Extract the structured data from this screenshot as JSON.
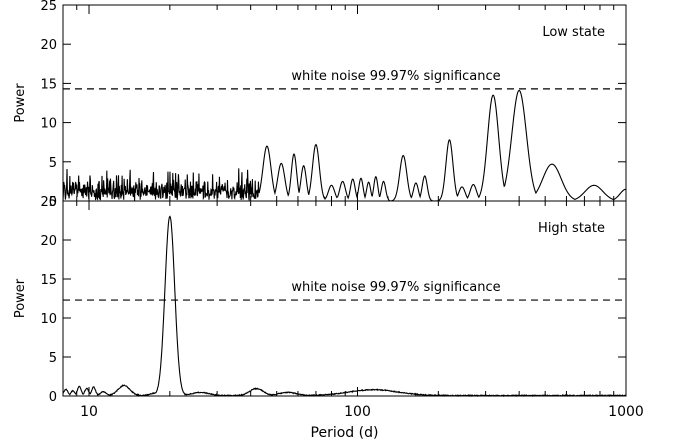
{
  "chart_data": [
    {
      "type": "line",
      "panel": "top",
      "title": "",
      "annotation": "Low state",
      "threshold_label": "white noise 99.97% significance",
      "threshold": 14.3,
      "xlabel": "",
      "ylabel": "Power",
      "xscale": "log",
      "xlim": [
        8,
        1000
      ],
      "ylim": [
        0,
        25
      ],
      "yticks": [
        0,
        5,
        10,
        15,
        20,
        25
      ],
      "ytick_labels": [
        "0",
        "5",
        "10",
        "15",
        "20",
        "25"
      ],
      "peaks": [
        {
          "x": 46,
          "y": 7.0
        },
        {
          "x": 52,
          "y": 4.8
        },
        {
          "x": 58,
          "y": 6.0
        },
        {
          "x": 63,
          "y": 4.5
        },
        {
          "x": 70,
          "y": 7.2
        },
        {
          "x": 80,
          "y": 2.0
        },
        {
          "x": 88,
          "y": 2.5
        },
        {
          "x": 96,
          "y": 2.8
        },
        {
          "x": 103,
          "y": 2.9
        },
        {
          "x": 110,
          "y": 2.4
        },
        {
          "x": 117,
          "y": 3.1
        },
        {
          "x": 125,
          "y": 2.5
        },
        {
          "x": 148,
          "y": 5.8
        },
        {
          "x": 165,
          "y": 2.3
        },
        {
          "x": 178,
          "y": 3.2
        },
        {
          "x": 220,
          "y": 7.8
        },
        {
          "x": 245,
          "y": 1.8
        },
        {
          "x": 270,
          "y": 2.1
        },
        {
          "x": 320,
          "y": 13.5
        },
        {
          "x": 400,
          "y": 14.1
        },
        {
          "x": 530,
          "y": 4.7
        },
        {
          "x": 760,
          "y": 2.0
        },
        {
          "x": 1000,
          "y": 1.5
        }
      ]
    },
    {
      "type": "line",
      "panel": "bottom",
      "title": "",
      "annotation": "High state",
      "threshold_label": "white noise 99.97% significance",
      "threshold": 12.3,
      "xlabel": "Period (d)",
      "ylabel": "Power",
      "xscale": "log",
      "xlim": [
        8,
        1000
      ],
      "ylim": [
        0,
        25
      ],
      "yticks": [
        0,
        5,
        10,
        15,
        20,
        25
      ],
      "ytick_labels": [
        "0",
        "5",
        "10",
        "15",
        "20",
        "25"
      ],
      "xticks": [
        10,
        100,
        1000
      ],
      "xtick_labels": [
        "10",
        "100",
        "1000"
      ],
      "peaks": [
        {
          "x": 8.2,
          "y": 0.8
        },
        {
          "x": 8.7,
          "y": 0.6
        },
        {
          "x": 9.2,
          "y": 1.2
        },
        {
          "x": 9.8,
          "y": 0.9
        },
        {
          "x": 10.4,
          "y": 1.1
        },
        {
          "x": 11.3,
          "y": 0.5
        },
        {
          "x": 13.5,
          "y": 1.3
        },
        {
          "x": 17.5,
          "y": 0.3
        },
        {
          "x": 20.0,
          "y": 23.0
        },
        {
          "x": 26,
          "y": 0.4
        },
        {
          "x": 42,
          "y": 0.9
        },
        {
          "x": 55,
          "y": 0.4
        },
        {
          "x": 115,
          "y": 0.75
        }
      ]
    }
  ]
}
